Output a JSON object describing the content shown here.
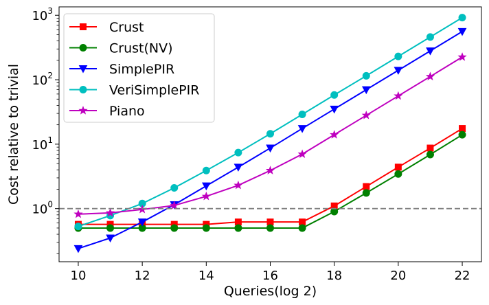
{
  "chart_data": {
    "type": "line",
    "title": "",
    "xlabel": "Queries(log 2)",
    "ylabel": "Cost relative to trivial",
    "yscale": "log",
    "xlim": [
      9.4,
      22.6
    ],
    "ylim": [
      0.15,
      1350
    ],
    "xticks": [
      10,
      12,
      14,
      16,
      18,
      20,
      22
    ],
    "yticks": [
      {
        "value": 1,
        "label": "10",
        "exp": "0"
      },
      {
        "value": 10,
        "label": "10",
        "exp": "1"
      },
      {
        "value": 100,
        "label": "10",
        "exp": "2"
      },
      {
        "value": 1000,
        "label": "10",
        "exp": "3"
      }
    ],
    "reference_line": {
      "y": 1,
      "style": "dashed",
      "color": "#808080"
    },
    "legend_position": "top-left",
    "grid": false,
    "x": [
      10,
      11,
      12,
      13,
      14,
      15,
      16,
      17,
      18,
      19,
      20,
      21,
      22
    ],
    "series": [
      {
        "name": "Crust",
        "color": "#ff0000",
        "marker": "square",
        "values": [
          0.57,
          0.57,
          0.57,
          0.57,
          0.57,
          0.62,
          0.62,
          0.62,
          1.1,
          2.2,
          4.4,
          8.7,
          17.5
        ]
      },
      {
        "name": "Crust(NV)",
        "color": "#008000",
        "marker": "circle",
        "values": [
          0.5,
          0.5,
          0.5,
          0.5,
          0.5,
          0.5,
          0.5,
          0.5,
          0.9,
          1.75,
          3.45,
          6.9,
          14
        ]
      },
      {
        "name": "SimplePIR",
        "color": "#0000ff",
        "marker": "triangle-down",
        "values": [
          0.24,
          0.35,
          0.62,
          1.15,
          2.25,
          4.4,
          8.7,
          17.5,
          35,
          70,
          140,
          280,
          560
        ]
      },
      {
        "name": "VeriSimplePIR",
        "color": "#00bfbf",
        "marker": "circle",
        "values": [
          0.53,
          0.78,
          1.2,
          2.1,
          3.9,
          7.4,
          14.5,
          29,
          58,
          115,
          230,
          460,
          920
        ]
      },
      {
        "name": "Piano",
        "color": "#bf00bf",
        "marker": "star",
        "values": [
          0.82,
          0.86,
          0.97,
          1.12,
          1.55,
          2.3,
          3.9,
          7.0,
          14,
          28,
          56,
          112,
          225
        ]
      }
    ]
  }
}
